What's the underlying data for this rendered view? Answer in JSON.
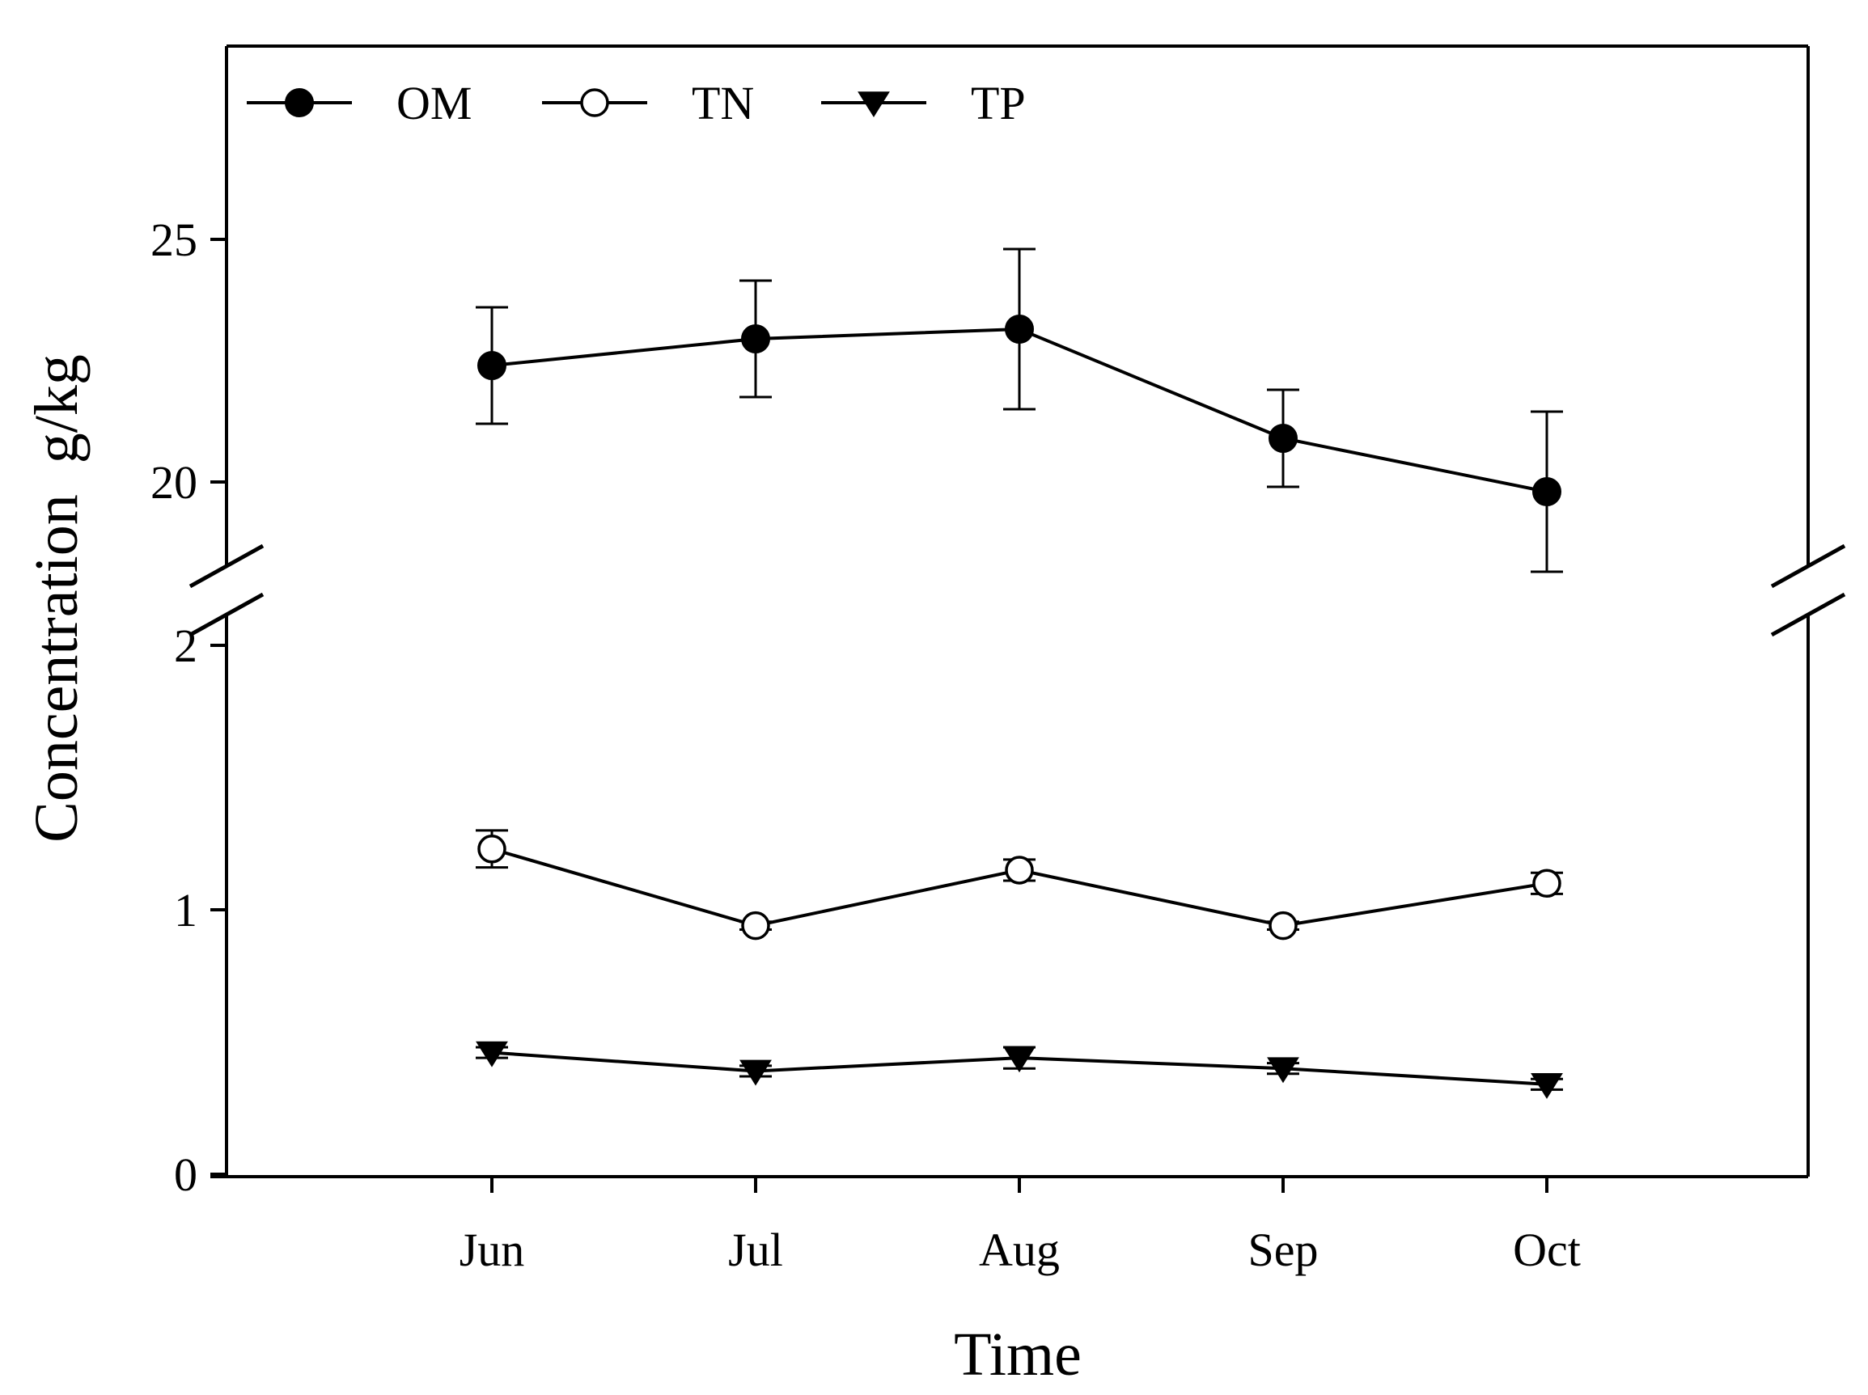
{
  "chart_data": {
    "type": "line",
    "title": "",
    "xlabel": "Time",
    "ylabel": "Concentration  g/kg",
    "categories": [
      "Jun",
      "Jul",
      "Aug",
      "Sep",
      "Oct"
    ],
    "y_axis_break": true,
    "upper_segment": {
      "ylim": [
        17.5,
        29
      ],
      "ticks": [
        20,
        25
      ]
    },
    "lower_segment": {
      "ylim": [
        0,
        2
      ],
      "ticks": [
        0,
        1,
        2
      ]
    },
    "legend": {
      "position": "top-left",
      "entries": [
        "OM",
        "TN",
        "TP"
      ]
    },
    "series": [
      {
        "name": "OM",
        "segment": "upper",
        "marker": "filled-circle",
        "values": [
          22.4,
          22.95,
          23.15,
          20.9,
          19.8
        ],
        "errors": [
          1.2,
          1.2,
          1.65,
          1.0,
          1.65
        ]
      },
      {
        "name": "TN",
        "segment": "lower",
        "marker": "open-circle",
        "values": [
          1.23,
          0.94,
          1.15,
          0.94,
          1.1
        ],
        "errors": [
          0.07,
          0.015,
          0.04,
          0.015,
          0.04
        ]
      },
      {
        "name": "TP",
        "segment": "lower",
        "marker": "filled-triangle-down",
        "values": [
          0.46,
          0.39,
          0.44,
          0.4,
          0.34
        ],
        "errors": [
          0.02,
          0.02,
          0.04,
          0.02,
          0.02
        ]
      }
    ]
  }
}
